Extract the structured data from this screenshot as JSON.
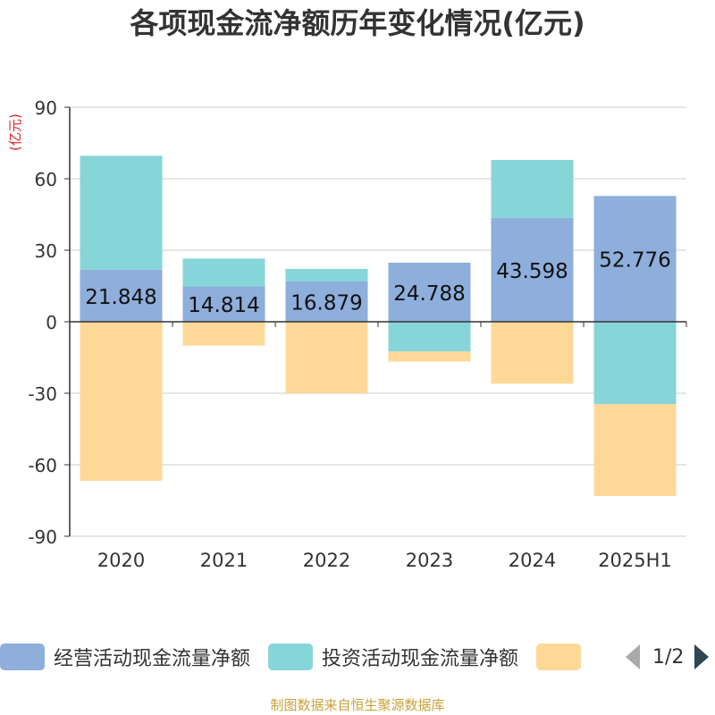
{
  "title": "各项现金流净额历年变化情况(亿元)",
  "source": "制图数据来自恒生聚源数据库",
  "legend_page": "1/2",
  "colors": {
    "operating": "#8eaedb",
    "investing": "#86d5d8",
    "financing": "#fed897",
    "title": "#333333",
    "axis": "#333333",
    "grid": "#cccccc",
    "unit": "#e02020",
    "source": "#c8a23a"
  },
  "chart_data": {
    "type": "bar",
    "stacked": true,
    "title": "各项现金流净额历年变化情况(亿元)",
    "ylabel": "(亿元)",
    "xlabel": "",
    "ylim": [
      -90,
      90
    ],
    "yticks": [
      90,
      60,
      30,
      0,
      -30,
      -60,
      -90
    ],
    "grid": true,
    "legend_position": "bottom",
    "categories": [
      "2020",
      "2021",
      "2022",
      "2023",
      "2024",
      "2025H1"
    ],
    "series": [
      {
        "name": "经营活动现金流量净额",
        "values": [
          21.848,
          14.814,
          16.879,
          24.788,
          43.598,
          52.776
        ],
        "labels": [
          "21.848",
          "14.814",
          "16.879",
          "24.788",
          "43.598",
          "52.776"
        ]
      },
      {
        "name": "投资活动现金流量净额",
        "values": [
          47.8,
          11.7,
          5.3,
          -12.5,
          24.3,
          -34.6
        ]
      },
      {
        "name": "",
        "values": [
          -66.7,
          -10.0,
          -30.0,
          -4.2,
          -26.0,
          -38.5
        ]
      }
    ]
  }
}
